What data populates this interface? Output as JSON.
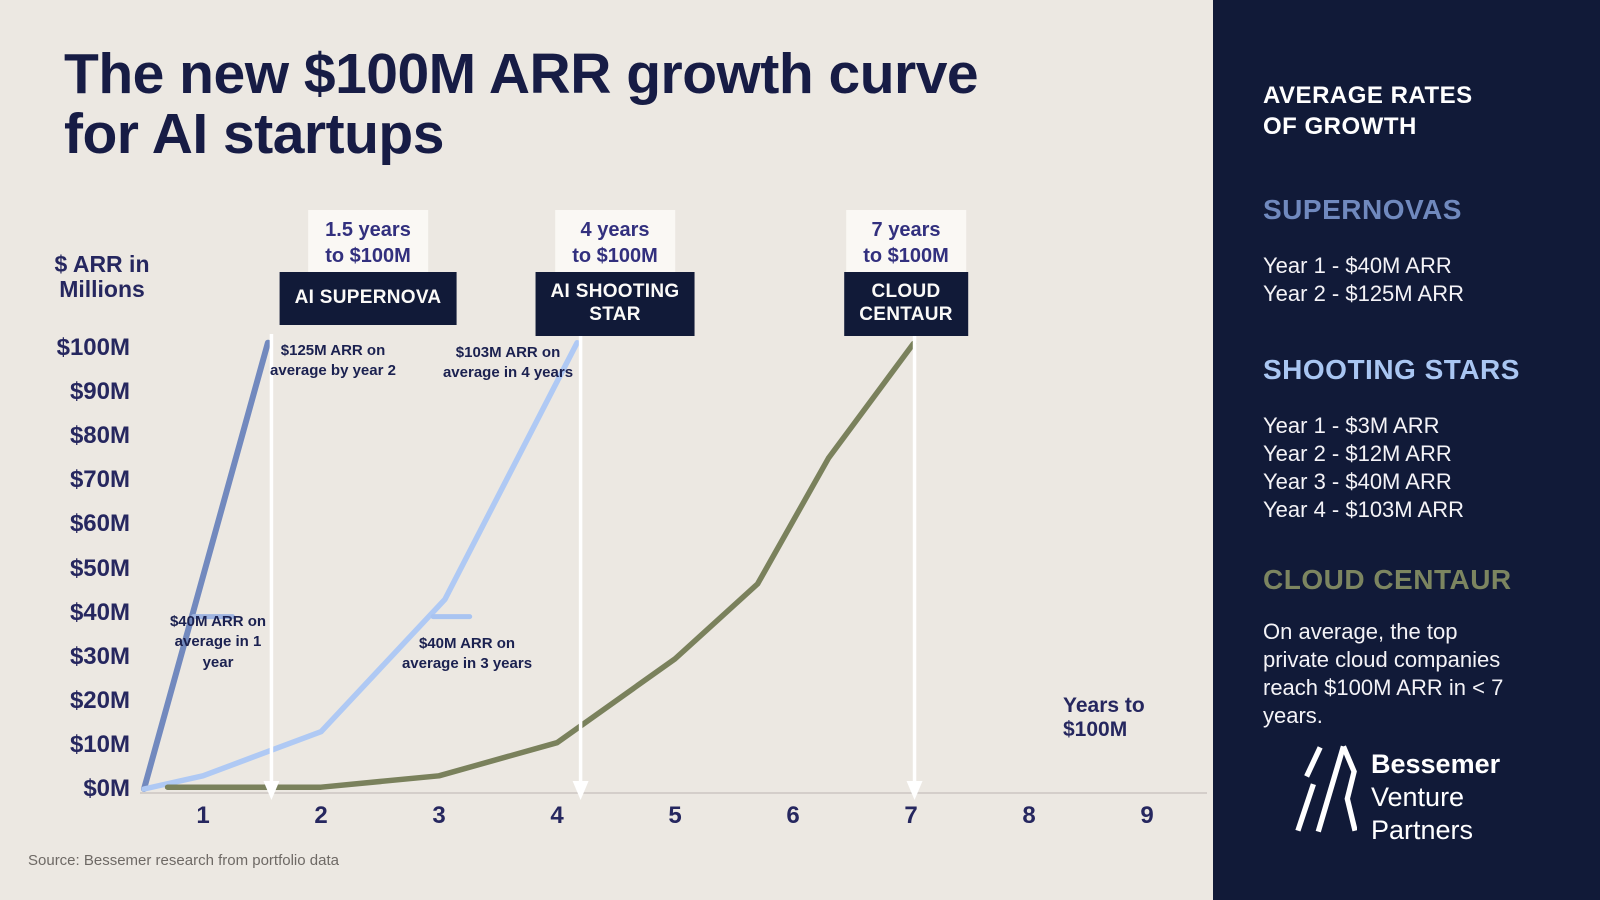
{
  "title": "The new $100M ARR growth curve for AI startups",
  "source": "Source: Bessemer research from portfolio data",
  "y_axis": {
    "label": "$ ARR in Millions",
    "ticks": [
      "$100M",
      "$90M",
      "$80M",
      "$70M",
      "$60M",
      "$50M",
      "$40M",
      "$30M",
      "$20M",
      "$10M",
      "$0M"
    ]
  },
  "x_axis": {
    "label": "Years to $100M",
    "ticks": [
      "1",
      "2",
      "3",
      "4",
      "5",
      "6",
      "7",
      "8",
      "9"
    ]
  },
  "plot_labels": [
    {
      "duration_lines": [
        "1.5 years",
        "to $100M"
      ],
      "name_lines": [
        "AI SUPERNOVA"
      ]
    },
    {
      "duration_lines": [
        "4 years",
        "to $100M"
      ],
      "name_lines": [
        "AI SHOOTING",
        "STAR"
      ]
    },
    {
      "duration_lines": [
        "7 years",
        "to $100M"
      ],
      "name_lines": [
        "CLOUD",
        "CENTAUR"
      ]
    }
  ],
  "annotations": [
    {
      "lines": [
        "$125M ARR on",
        "average by year 2"
      ]
    },
    {
      "lines": [
        "$40M ARR on",
        "average in 1",
        "year"
      ]
    },
    {
      "lines": [
        "$103M ARR on",
        "average in 4 years"
      ]
    },
    {
      "lines": [
        "$40M ARR on",
        "average in 3 years"
      ]
    }
  ],
  "colors": {
    "background": "#ECE8E2",
    "navy": "#111A38",
    "ink": "#26275F",
    "axis_line": "#CBC6C1",
    "arrow": "#FFFFFF",
    "supernova": "#7289BE",
    "shooting_star": "#AFC9F4",
    "cloud_centaur": "#7A815C",
    "supernova_tick": "#9FB4E0",
    "shooting_star_tick": "#A9C4F1"
  },
  "chart_data": {
    "type": "line",
    "title": "The new $100M ARR growth curve for AI startups",
    "xlabel": "Years to $100M",
    "ylabel": "$ ARR in Millions",
    "x_ticks": [
      1,
      2,
      3,
      4,
      5,
      6,
      7,
      8,
      9
    ],
    "y_ticks_millions": [
      0,
      10,
      20,
      30,
      40,
      50,
      60,
      70,
      80,
      90,
      100
    ],
    "ylim_millions": [
      0,
      100
    ],
    "grid": "baseline-only",
    "series": [
      {
        "name": "AI Supernova",
        "color": "#7289BE",
        "years_to_100m": 1.5,
        "arr_by_year_m": {
          "1": 40,
          "2": 125
        },
        "curve_points": [
          [
            0.5,
            0
          ],
          [
            1.55,
            101.2
          ]
        ],
        "tick_40m_year_span": [
          0.92,
          1.25
        ],
        "arrow_year": 1.58
      },
      {
        "name": "AI Shooting Star",
        "color": "#AFC9F4",
        "years_to_100m": 4,
        "arr_by_year_m": {
          "1": 3,
          "2": 12,
          "3": 40,
          "4": 103
        },
        "curve_points": [
          [
            0.5,
            0
          ],
          [
            1,
            3
          ],
          [
            2,
            13
          ],
          [
            3.05,
            43
          ],
          [
            4.17,
            101.2
          ]
        ],
        "tick_40m_year_span": [
          2.95,
          3.26
        ],
        "arrow_year": 4.2
      },
      {
        "name": "Cloud Centaur",
        "color": "#7A815C",
        "years_to_100m": 7,
        "note": "On average, the top private cloud companies reach $100M ARR in < 7 years.",
        "curve_points": [
          [
            0.7,
            0.4
          ],
          [
            2,
            0.4
          ],
          [
            3,
            3
          ],
          [
            4,
            10.5
          ],
          [
            5,
            29.5
          ],
          [
            5.7,
            46.5
          ],
          [
            6.3,
            75
          ],
          [
            7.02,
            101
          ]
        ],
        "arrow_year": 7.03
      }
    ]
  },
  "sidebar": {
    "title": "AVERAGE RATES OF GROWTH",
    "sections": [
      {
        "heading": "SUPERNOVAS",
        "color": "#7089BE",
        "lines": [
          "Year 1 - $40M ARR",
          "Year 2 - $125M ARR"
        ]
      },
      {
        "heading": "SHOOTING STARS",
        "color": "#A9C6F2",
        "lines": [
          "Year 1 - $3M ARR",
          "Year 2 - $12M ARR",
          "Year 3 - $40M ARR",
          "Year 4 - $103M ARR"
        ]
      },
      {
        "heading": "CLOUD CENTAUR",
        "color": "#7C8560",
        "paragraph": "On average, the top private cloud companies reach $100M ARR in < 7 years."
      }
    ],
    "logo": {
      "line1": "Bessemer",
      "line2": "Venture",
      "line3": "Partners"
    }
  }
}
